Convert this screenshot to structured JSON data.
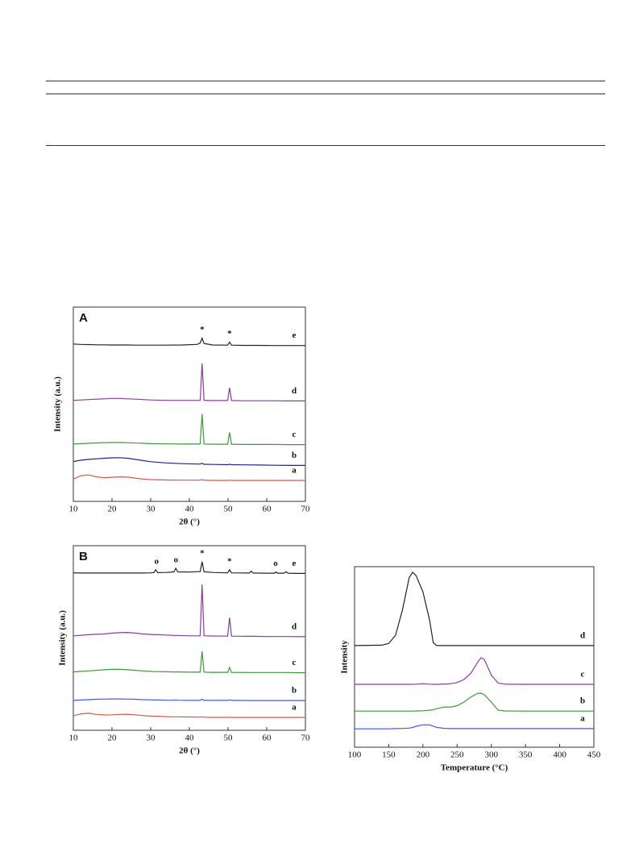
{
  "chart_data": [
    {
      "type": "line",
      "panel": "A",
      "xlabel": "2θ (°)",
      "ylabel": "Intensity (a.u.)",
      "xlim": [
        10,
        70
      ],
      "xticks": [
        10,
        20,
        30,
        40,
        50,
        60,
        70
      ],
      "ylim": [
        0,
        100
      ],
      "x": [
        10,
        12,
        14,
        16,
        18,
        20,
        22,
        24,
        26,
        28,
        30,
        34,
        38,
        42,
        42.8,
        43.3,
        43.8,
        46,
        49.9,
        50.4,
        50.9,
        54,
        58,
        62,
        66,
        70
      ],
      "annotations": [
        {
          "text": "*",
          "x": 43.3
        },
        {
          "text": "*",
          "x": 50.4
        }
      ],
      "series": [
        {
          "name": "e",
          "color": "#222222",
          "values": [
            81,
            80.8,
            80.7,
            80.6,
            80.6,
            80.5,
            80.5,
            80.5,
            80.4,
            80.4,
            80.4,
            80.4,
            80.5,
            80.8,
            81.5,
            84,
            81.3,
            80.5,
            80.4,
            82,
            80.4,
            80.3,
            80.3,
            80.2,
            80.2,
            80.2
          ]
        },
        {
          "name": "d",
          "color": "#8b3a9e",
          "values": [
            52,
            52.2,
            52.4,
            52.6,
            52.8,
            53,
            53,
            52.8,
            52.6,
            52.4,
            52.2,
            52,
            52,
            52,
            52,
            71,
            52,
            51.9,
            51.9,
            58.5,
            51.9,
            51.8,
            51.8,
            51.8,
            51.7,
            51.7
          ]
        },
        {
          "name": "c",
          "color": "#3a9a3a",
          "values": [
            29.5,
            29.7,
            29.9,
            30.1,
            30.2,
            30.3,
            30.3,
            30.2,
            30,
            29.9,
            29.7,
            29.6,
            29.5,
            29.5,
            29.5,
            45,
            29.5,
            29.4,
            29.4,
            35.5,
            29.4,
            29.3,
            29.3,
            29.3,
            29.2,
            29.2
          ]
        },
        {
          "name": "b",
          "color": "#22228a",
          "values": [
            20.5,
            21.2,
            21.6,
            21.9,
            22.2,
            22.4,
            22.5,
            22.2,
            21.6,
            21,
            20.4,
            19.8,
            19.4,
            19.2,
            19.2,
            19.6,
            19.1,
            19,
            18.9,
            19.1,
            18.9,
            18.8,
            18.7,
            18.6,
            18.5,
            18.5
          ]
        },
        {
          "name": "a",
          "color": "#d05a4a",
          "values": [
            11.5,
            13.2,
            13.6,
            12.6,
            12.2,
            12.4,
            12.6,
            12.5,
            12,
            11.5,
            11.2,
            11,
            10.9,
            10.9,
            10.9,
            11.2,
            10.9,
            10.8,
            10.8,
            10.9,
            10.8,
            10.8,
            10.8,
            10.8,
            10.8,
            10.8
          ]
        }
      ]
    },
    {
      "type": "line",
      "panel": "B",
      "xlabel": "2θ (°)",
      "ylabel": "Intensity (a.u.)",
      "xlim": [
        10,
        70
      ],
      "xticks": [
        10,
        20,
        30,
        40,
        50,
        60,
        70
      ],
      "ylim": [
        0,
        100
      ],
      "x": [
        10,
        12,
        14,
        16,
        18,
        20,
        22,
        24,
        26,
        28,
        30,
        30.8,
        31.3,
        31.8,
        34,
        36,
        36.5,
        37,
        40,
        42.8,
        43.3,
        43.8,
        46,
        49.9,
        50.4,
        50.9,
        55.5,
        56,
        56.5,
        60,
        62,
        62.4,
        62.8,
        64.5,
        65,
        65.5,
        68,
        70
      ],
      "annotations": [
        {
          "text": "o",
          "x": 31.5
        },
        {
          "text": "o",
          "x": 36.5
        },
        {
          "text": "*",
          "x": 43.3
        },
        {
          "text": "*",
          "x": 50.4
        },
        {
          "text": "o",
          "x": 62.3
        }
      ],
      "series": [
        {
          "name": "e",
          "color": "#222222",
          "values": [
            85.3,
            85.2,
            85.2,
            85.2,
            85.2,
            85.2,
            85.2,
            85.2,
            85.2,
            85.2,
            85.3,
            85.4,
            87,
            85.4,
            85.5,
            85.8,
            87.8,
            85.8,
            85.7,
            86,
            91.3,
            85.9,
            85.5,
            85.3,
            87,
            85.3,
            85.2,
            86.2,
            85.2,
            85.1,
            85.1,
            85.8,
            85.1,
            85.1,
            85.9,
            85.1,
            85,
            85
          ]
        },
        {
          "name": "d",
          "color": "#8b3a9e",
          "values": [
            51.2,
            51.5,
            51.8,
            52,
            52.2,
            52.6,
            52.9,
            53,
            52.6,
            52.2,
            51.9,
            51.8,
            51.8,
            51.8,
            51.6,
            51.4,
            51.4,
            51.4,
            51.2,
            51.2,
            79,
            51.2,
            51.1,
            51,
            61,
            51,
            50.9,
            50.9,
            50.9,
            50.8,
            50.8,
            50.8,
            50.8,
            50.8,
            50.8,
            50.8,
            50.7,
            50.7
          ]
        },
        {
          "name": "c",
          "color": "#3a9a3a",
          "values": [
            31.6,
            31.9,
            32.2,
            32.5,
            32.8,
            33,
            33,
            32.8,
            32.5,
            32.2,
            31.9,
            31.8,
            31.8,
            31.8,
            31.7,
            31.6,
            31.6,
            31.6,
            31.5,
            31.5,
            42.8,
            31.5,
            31.4,
            31.4,
            34,
            31.4,
            31.3,
            31.3,
            31.3,
            31.3,
            31.3,
            31.3,
            31.3,
            31.3,
            31.3,
            31.3,
            31.2,
            31.2
          ]
        },
        {
          "name": "b",
          "color": "#4455ee",
          "values": [
            16.2,
            16.4,
            16.6,
            16.8,
            16.9,
            17,
            17,
            16.9,
            16.8,
            16.6,
            16.5,
            16.4,
            16.4,
            16.4,
            16.3,
            16.3,
            16.4,
            16.3,
            16.2,
            16.2,
            16.8,
            16.2,
            16.2,
            16.2,
            16.5,
            16.2,
            16.1,
            16.1,
            16.1,
            16.1,
            16.1,
            16.1,
            16.1,
            16.1,
            16.1,
            16.1,
            16.1,
            16.1
          ]
        },
        {
          "name": "a",
          "color": "#d05a4a",
          "values": [
            7.8,
            8.9,
            9.2,
            8.6,
            8.3,
            8.4,
            8.6,
            8.7,
            8.4,
            8,
            7.7,
            7.6,
            7.6,
            7.6,
            7.4,
            7.3,
            7.3,
            7.3,
            7.2,
            7.1,
            7.3,
            7.1,
            7,
            7,
            7.1,
            7,
            7,
            7,
            7,
            7,
            7,
            7,
            7,
            7,
            7,
            7,
            7,
            7
          ]
        }
      ]
    },
    {
      "type": "line",
      "xlabel": "Temperature (°C)",
      "ylabel": "Intensity",
      "xlim": [
        100,
        450
      ],
      "xticks": [
        100,
        150,
        200,
        250,
        300,
        350,
        400,
        450
      ],
      "ylim": [
        0,
        100
      ],
      "x": [
        100,
        140,
        150,
        160,
        170,
        180,
        185,
        190,
        200,
        210,
        215,
        220,
        230,
        235,
        240,
        250,
        260,
        270,
        280,
        285,
        290,
        300,
        310,
        320,
        350,
        400,
        450
      ],
      "series": [
        {
          "name": "d",
          "color": "#222222",
          "values": [
            56.3,
            56.5,
            57.5,
            62,
            76,
            94,
            96.9,
            95,
            86,
            70,
            58,
            56.3,
            56.3,
            56.3,
            56.3,
            56.3,
            56.3,
            56.3,
            56.3,
            56.3,
            56.3,
            56.3,
            56.3,
            56.3,
            56.3,
            56.3,
            56.3
          ]
        },
        {
          "name": "c",
          "color": "#8b3a9e",
          "values": [
            34.8,
            34.8,
            34.8,
            34.8,
            34.8,
            34.8,
            34.8,
            34.9,
            35.2,
            34.9,
            34.8,
            34.8,
            35,
            35,
            35.2,
            35.8,
            37.5,
            41,
            47,
            49.6,
            48.5,
            40,
            35.5,
            34.9,
            34.8,
            34.8,
            34.8
          ]
        },
        {
          "name": "b",
          "color": "#3a9a3a",
          "values": [
            20,
            20,
            20,
            20,
            20,
            20,
            20,
            20.1,
            20.2,
            20.5,
            20.8,
            21.3,
            22.2,
            22.3,
            22.2,
            23,
            25,
            27.8,
            29.8,
            29.9,
            29,
            25,
            20.5,
            20.1,
            20,
            20,
            20
          ]
        },
        {
          "name": "a",
          "color": "#4455ee",
          "values": [
            10.2,
            10.2,
            10.2,
            10.3,
            10.4,
            10.6,
            11,
            11.6,
            12.4,
            12.3,
            11.7,
            11,
            10.5,
            10.4,
            10.3,
            10.3,
            10.3,
            10.3,
            10.3,
            10.3,
            10.3,
            10.3,
            10.3,
            10.3,
            10.3,
            10.3,
            10.3
          ]
        }
      ]
    }
  ]
}
